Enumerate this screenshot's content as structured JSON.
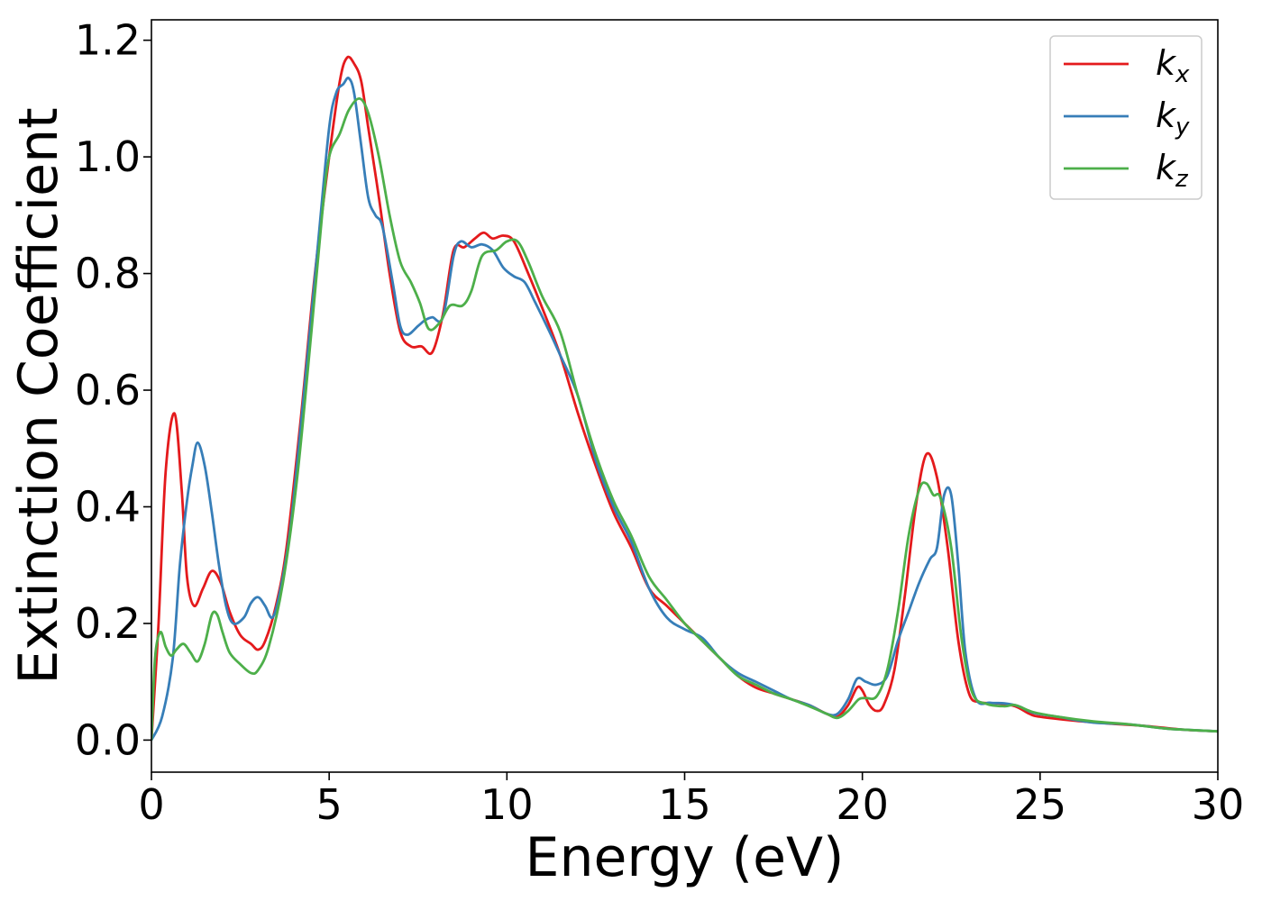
{
  "chart_data": {
    "type": "line",
    "xlabel": "Energy (eV)",
    "ylabel": "Extinction Coefficient",
    "xlim": [
      0,
      30
    ],
    "ylim": [
      -0.055,
      1.235
    ],
    "xticks": [
      0,
      5,
      10,
      15,
      20,
      25,
      30
    ],
    "xtick_labels": [
      "0",
      "5",
      "10",
      "15",
      "20",
      "25",
      "30"
    ],
    "yticks": [
      0.0,
      0.2,
      0.4,
      0.6,
      0.8,
      1.0,
      1.2
    ],
    "ytick_labels": [
      "0.0",
      "0.2",
      "0.4",
      "0.6",
      "0.8",
      "1.0",
      "1.2"
    ],
    "grid": false,
    "legend_position": "top-right",
    "series": [
      {
        "name": "k_x",
        "label_main": "k",
        "label_sub": "x",
        "color": "#e41a1c",
        "points": [
          [
            0,
            0.0
          ],
          [
            0.2,
            0.2
          ],
          [
            0.4,
            0.46
          ],
          [
            0.65,
            0.56
          ],
          [
            0.85,
            0.43
          ],
          [
            1.0,
            0.28
          ],
          [
            1.2,
            0.23
          ],
          [
            1.45,
            0.26
          ],
          [
            1.7,
            0.29
          ],
          [
            1.95,
            0.27
          ],
          [
            2.2,
            0.22
          ],
          [
            2.5,
            0.18
          ],
          [
            2.8,
            0.165
          ],
          [
            3.0,
            0.155
          ],
          [
            3.2,
            0.17
          ],
          [
            3.5,
            0.23
          ],
          [
            3.8,
            0.33
          ],
          [
            4.2,
            0.55
          ],
          [
            4.6,
            0.8
          ],
          [
            5.0,
            1.0
          ],
          [
            5.3,
            1.13
          ],
          [
            5.5,
            1.17
          ],
          [
            5.7,
            1.16
          ],
          [
            5.9,
            1.13
          ],
          [
            6.1,
            1.05
          ],
          [
            6.4,
            0.93
          ],
          [
            6.7,
            0.8
          ],
          [
            7.0,
            0.7
          ],
          [
            7.3,
            0.675
          ],
          [
            7.6,
            0.675
          ],
          [
            7.9,
            0.665
          ],
          [
            8.2,
            0.73
          ],
          [
            8.5,
            0.84
          ],
          [
            8.8,
            0.845
          ],
          [
            9.1,
            0.86
          ],
          [
            9.35,
            0.87
          ],
          [
            9.6,
            0.86
          ],
          [
            9.9,
            0.865
          ],
          [
            10.2,
            0.855
          ],
          [
            10.6,
            0.8
          ],
          [
            11.0,
            0.74
          ],
          [
            11.5,
            0.66
          ],
          [
            12.0,
            0.56
          ],
          [
            12.5,
            0.47
          ],
          [
            13.0,
            0.39
          ],
          [
            13.5,
            0.33
          ],
          [
            14.0,
            0.26
          ],
          [
            14.5,
            0.23
          ],
          [
            15.0,
            0.2
          ],
          [
            15.5,
            0.17
          ],
          [
            16.0,
            0.14
          ],
          [
            16.5,
            0.11
          ],
          [
            17.0,
            0.09
          ],
          [
            17.5,
            0.08
          ],
          [
            18.0,
            0.07
          ],
          [
            18.5,
            0.06
          ],
          [
            19.0,
            0.045
          ],
          [
            19.3,
            0.04
          ],
          [
            19.6,
            0.06
          ],
          [
            19.85,
            0.09
          ],
          [
            20.0,
            0.085
          ],
          [
            20.2,
            0.06
          ],
          [
            20.4,
            0.05
          ],
          [
            20.6,
            0.06
          ],
          [
            20.9,
            0.12
          ],
          [
            21.2,
            0.25
          ],
          [
            21.5,
            0.4
          ],
          [
            21.8,
            0.49
          ],
          [
            22.1,
            0.45
          ],
          [
            22.4,
            0.33
          ],
          [
            22.7,
            0.17
          ],
          [
            23.0,
            0.08
          ],
          [
            23.3,
            0.065
          ],
          [
            23.8,
            0.063
          ],
          [
            24.3,
            0.058
          ],
          [
            24.7,
            0.045
          ],
          [
            25.0,
            0.04
          ],
          [
            26.0,
            0.033
          ],
          [
            27.0,
            0.028
          ],
          [
            28.0,
            0.024
          ],
          [
            29.0,
            0.018
          ],
          [
            30.0,
            0.015
          ]
        ]
      },
      {
        "name": "k_y",
        "label_main": "k",
        "label_sub": "y",
        "color": "#377eb8",
        "points": [
          [
            0,
            0.0
          ],
          [
            0.3,
            0.04
          ],
          [
            0.6,
            0.14
          ],
          [
            0.8,
            0.3
          ],
          [
            1.0,
            0.41
          ],
          [
            1.15,
            0.47
          ],
          [
            1.3,
            0.51
          ],
          [
            1.5,
            0.47
          ],
          [
            1.7,
            0.39
          ],
          [
            1.9,
            0.3
          ],
          [
            2.1,
            0.23
          ],
          [
            2.3,
            0.2
          ],
          [
            2.6,
            0.21
          ],
          [
            2.8,
            0.235
          ],
          [
            3.0,
            0.245
          ],
          [
            3.2,
            0.23
          ],
          [
            3.4,
            0.21
          ],
          [
            3.6,
            0.25
          ],
          [
            3.9,
            0.36
          ],
          [
            4.3,
            0.6
          ],
          [
            4.7,
            0.86
          ],
          [
            5.0,
            1.05
          ],
          [
            5.2,
            1.11
          ],
          [
            5.4,
            1.125
          ],
          [
            5.55,
            1.135
          ],
          [
            5.7,
            1.11
          ],
          [
            5.9,
            1.02
          ],
          [
            6.1,
            0.93
          ],
          [
            6.3,
            0.9
          ],
          [
            6.5,
            0.88
          ],
          [
            6.8,
            0.78
          ],
          [
            7.0,
            0.71
          ],
          [
            7.2,
            0.695
          ],
          [
            7.5,
            0.71
          ],
          [
            7.7,
            0.72
          ],
          [
            7.9,
            0.725
          ],
          [
            8.2,
            0.725
          ],
          [
            8.5,
            0.83
          ],
          [
            8.7,
            0.855
          ],
          [
            9.0,
            0.845
          ],
          [
            9.3,
            0.85
          ],
          [
            9.6,
            0.84
          ],
          [
            9.9,
            0.81
          ],
          [
            10.2,
            0.795
          ],
          [
            10.5,
            0.785
          ],
          [
            10.8,
            0.75
          ],
          [
            11.2,
            0.7
          ],
          [
            11.5,
            0.66
          ],
          [
            12.0,
            0.59
          ],
          [
            12.5,
            0.48
          ],
          [
            13.0,
            0.4
          ],
          [
            13.5,
            0.34
          ],
          [
            14.0,
            0.26
          ],
          [
            14.5,
            0.21
          ],
          [
            15.0,
            0.19
          ],
          [
            15.5,
            0.175
          ],
          [
            16.0,
            0.14
          ],
          [
            16.5,
            0.115
          ],
          [
            17.0,
            0.1
          ],
          [
            17.5,
            0.085
          ],
          [
            18.0,
            0.07
          ],
          [
            18.5,
            0.06
          ],
          [
            19.0,
            0.045
          ],
          [
            19.3,
            0.045
          ],
          [
            19.6,
            0.07
          ],
          [
            19.85,
            0.105
          ],
          [
            20.1,
            0.1
          ],
          [
            20.4,
            0.095
          ],
          [
            20.7,
            0.11
          ],
          [
            21.0,
            0.17
          ],
          [
            21.3,
            0.22
          ],
          [
            21.6,
            0.27
          ],
          [
            21.9,
            0.31
          ],
          [
            22.1,
            0.33
          ],
          [
            22.3,
            0.42
          ],
          [
            22.5,
            0.42
          ],
          [
            22.7,
            0.3
          ],
          [
            22.9,
            0.15
          ],
          [
            23.2,
            0.07
          ],
          [
            23.6,
            0.064
          ],
          [
            24.0,
            0.063
          ],
          [
            24.4,
            0.058
          ],
          [
            24.8,
            0.047
          ],
          [
            25.5,
            0.04
          ],
          [
            26.5,
            0.03
          ],
          [
            27.5,
            0.027
          ],
          [
            28.5,
            0.02
          ],
          [
            29.0,
            0.018
          ],
          [
            30.0,
            0.015
          ]
        ]
      },
      {
        "name": "k_z",
        "label_main": "k",
        "label_sub": "z",
        "color": "#4daf4a",
        "points": [
          [
            0,
            0.0
          ],
          [
            0.1,
            0.14
          ],
          [
            0.25,
            0.185
          ],
          [
            0.4,
            0.16
          ],
          [
            0.55,
            0.145
          ],
          [
            0.7,
            0.155
          ],
          [
            0.9,
            0.165
          ],
          [
            1.1,
            0.15
          ],
          [
            1.3,
            0.135
          ],
          [
            1.5,
            0.165
          ],
          [
            1.7,
            0.215
          ],
          [
            1.85,
            0.215
          ],
          [
            2.0,
            0.185
          ],
          [
            2.2,
            0.15
          ],
          [
            2.5,
            0.13
          ],
          [
            2.8,
            0.115
          ],
          [
            3.0,
            0.12
          ],
          [
            3.3,
            0.16
          ],
          [
            3.7,
            0.27
          ],
          [
            4.1,
            0.45
          ],
          [
            4.5,
            0.7
          ],
          [
            4.8,
            0.9
          ],
          [
            5.0,
            1.0
          ],
          [
            5.3,
            1.04
          ],
          [
            5.55,
            1.08
          ],
          [
            5.85,
            1.1
          ],
          [
            6.1,
            1.075
          ],
          [
            6.4,
            1.0
          ],
          [
            6.7,
            0.9
          ],
          [
            7.0,
            0.82
          ],
          [
            7.3,
            0.785
          ],
          [
            7.55,
            0.75
          ],
          [
            7.8,
            0.705
          ],
          [
            8.1,
            0.715
          ],
          [
            8.4,
            0.745
          ],
          [
            8.75,
            0.745
          ],
          [
            9.0,
            0.77
          ],
          [
            9.3,
            0.83
          ],
          [
            9.7,
            0.84
          ],
          [
            10.0,
            0.855
          ],
          [
            10.3,
            0.855
          ],
          [
            10.6,
            0.82
          ],
          [
            11.0,
            0.76
          ],
          [
            11.5,
            0.7
          ],
          [
            12.0,
            0.59
          ],
          [
            12.5,
            0.49
          ],
          [
            13.0,
            0.41
          ],
          [
            13.5,
            0.35
          ],
          [
            14.0,
            0.28
          ],
          [
            14.5,
            0.24
          ],
          [
            15.0,
            0.2
          ],
          [
            15.5,
            0.17
          ],
          [
            16.0,
            0.14
          ],
          [
            16.5,
            0.11
          ],
          [
            17.0,
            0.095
          ],
          [
            17.5,
            0.08
          ],
          [
            18.0,
            0.07
          ],
          [
            18.5,
            0.058
          ],
          [
            19.0,
            0.045
          ],
          [
            19.3,
            0.038
          ],
          [
            19.6,
            0.05
          ],
          [
            19.9,
            0.07
          ],
          [
            20.1,
            0.072
          ],
          [
            20.4,
            0.075
          ],
          [
            20.7,
            0.12
          ],
          [
            21.0,
            0.22
          ],
          [
            21.3,
            0.35
          ],
          [
            21.6,
            0.43
          ],
          [
            21.8,
            0.44
          ],
          [
            22.0,
            0.42
          ],
          [
            22.2,
            0.415
          ],
          [
            22.5,
            0.33
          ],
          [
            22.8,
            0.17
          ],
          [
            23.1,
            0.08
          ],
          [
            23.5,
            0.062
          ],
          [
            24.0,
            0.058
          ],
          [
            24.3,
            0.06
          ],
          [
            24.8,
            0.048
          ],
          [
            25.5,
            0.04
          ],
          [
            26.5,
            0.032
          ],
          [
            27.5,
            0.027
          ],
          [
            28.5,
            0.02
          ],
          [
            29.0,
            0.018
          ],
          [
            30.0,
            0.015
          ]
        ]
      }
    ]
  }
}
